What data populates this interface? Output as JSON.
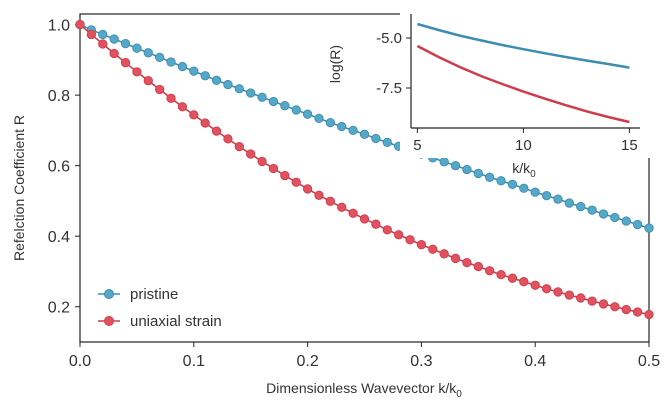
{
  "chart_data": [
    {
      "type": "line",
      "xlabel": "Dimensionless Wavevector   k/k",
      "xlabel_sub": "0",
      "ylabel": "Refelction Coefficient   R",
      "xlim": [
        0.0,
        0.5
      ],
      "ylim": [
        0.1,
        1.03
      ],
      "x_ticks": [
        "0.0",
        "0.1",
        "0.2",
        "0.3",
        "0.4",
        "0.5"
      ],
      "y_ticks": [
        "0.2",
        "0.4",
        "0.6",
        "0.8",
        "1.0"
      ],
      "grid": false,
      "legend_position": "bottom-left",
      "x": [
        0.0,
        0.01,
        0.02,
        0.03,
        0.04,
        0.05,
        0.06,
        0.07,
        0.08,
        0.09,
        0.1,
        0.11,
        0.12,
        0.13,
        0.14,
        0.15,
        0.16,
        0.17,
        0.18,
        0.19,
        0.2,
        0.21,
        0.22,
        0.23,
        0.24,
        0.25,
        0.26,
        0.27,
        0.28,
        0.29,
        0.3,
        0.31,
        0.32,
        0.33,
        0.34,
        0.35,
        0.36,
        0.37,
        0.38,
        0.39,
        0.4,
        0.41,
        0.42,
        0.43,
        0.44,
        0.45,
        0.46,
        0.47,
        0.48,
        0.49,
        0.5
      ],
      "series": [
        {
          "name": "pristine",
          "color": "#56a8c8",
          "line_color": "#3d8db0",
          "values": [
            1.0,
            0.985,
            0.972,
            0.959,
            0.946,
            0.933,
            0.92,
            0.907,
            0.894,
            0.881,
            0.868,
            0.855,
            0.842,
            0.83,
            0.818,
            0.806,
            0.794,
            0.782,
            0.77,
            0.758,
            0.746,
            0.734,
            0.722,
            0.711,
            0.7,
            0.689,
            0.677,
            0.666,
            0.655,
            0.644,
            0.633,
            0.622,
            0.611,
            0.6,
            0.589,
            0.578,
            0.567,
            0.557,
            0.547,
            0.536,
            0.525,
            0.515,
            0.505,
            0.494,
            0.484,
            0.474,
            0.463,
            0.453,
            0.443,
            0.433,
            0.423
          ]
        },
        {
          "name": "uniaxial strain",
          "color": "#e0525f",
          "line_color": "#d03c4a",
          "values": [
            1.0,
            0.972,
            0.945,
            0.918,
            0.892,
            0.866,
            0.841,
            0.816,
            0.791,
            0.767,
            0.744,
            0.721,
            0.698,
            0.676,
            0.654,
            0.633,
            0.612,
            0.592,
            0.572,
            0.553,
            0.534,
            0.516,
            0.499,
            0.482,
            0.465,
            0.449,
            0.434,
            0.418,
            0.404,
            0.39,
            0.376,
            0.363,
            0.35,
            0.337,
            0.325,
            0.314,
            0.302,
            0.291,
            0.281,
            0.271,
            0.261,
            0.251,
            0.242,
            0.233,
            0.225,
            0.216,
            0.208,
            0.2,
            0.192,
            0.185,
            0.178
          ]
        }
      ]
    },
    {
      "type": "line",
      "xlabel": "k/k",
      "xlabel_sub": "0",
      "ylabel": "log(R)",
      "xlim": [
        4.7,
        15.5
      ],
      "ylim": [
        -9.5,
        -3.8
      ],
      "x_ticks": [
        "5",
        "10",
        "15"
      ],
      "y_ticks": [
        "-5.0",
        "-7.5"
      ],
      "grid": false,
      "x": [
        5,
        6,
        7,
        8,
        9,
        10,
        11,
        12,
        13,
        14,
        15
      ],
      "series": [
        {
          "color": "#3d8db0",
          "values": [
            -4.3,
            -4.6,
            -4.88,
            -5.12,
            -5.35,
            -5.56,
            -5.76,
            -5.95,
            -6.13,
            -6.3,
            -6.48
          ]
        },
        {
          "color": "#d03c4a",
          "values": [
            -5.4,
            -5.95,
            -6.45,
            -6.9,
            -7.3,
            -7.68,
            -8.03,
            -8.36,
            -8.67,
            -8.95,
            -9.2
          ]
        }
      ]
    }
  ]
}
